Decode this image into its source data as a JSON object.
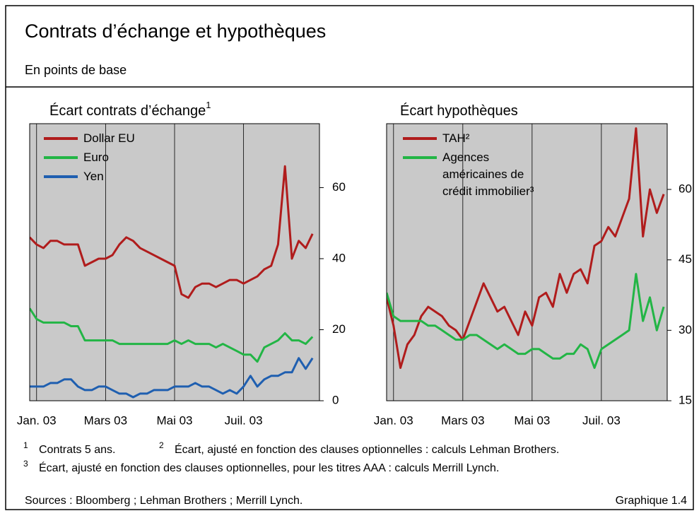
{
  "title": "Contrats d’échange et hypothèques",
  "subtitle": "En points de base",
  "chart_data": [
    {
      "type": "line",
      "title": "Écart contrats d’échange",
      "title_sup": "1",
      "x": [
        -0.2,
        0,
        0.2,
        0.4,
        0.6,
        0.8,
        1,
        1.2,
        1.4,
        1.6,
        1.8,
        2,
        2.2,
        2.4,
        2.6,
        2.8,
        3,
        3.2,
        3.4,
        3.6,
        3.8,
        4,
        4.2,
        4.4,
        4.6,
        4.8,
        5,
        5.2,
        5.4,
        5.6,
        5.8,
        6,
        6.2,
        6.4,
        6.6,
        6.8,
        7,
        7.2,
        7.4,
        7.6,
        7.8,
        8
      ],
      "xlim": [
        -0.2,
        8.2
      ],
      "xticks": [
        {
          "value": 0,
          "label": "Jan. 03"
        },
        {
          "value": 2,
          "label": "Mars 03"
        },
        {
          "value": 4,
          "label": "Mai 03"
        },
        {
          "value": 6,
          "label": "Juil. 03"
        }
      ],
      "ylim": [
        0,
        78
      ],
      "yticks": [
        0,
        20,
        40,
        60
      ],
      "grid": "x",
      "series": [
        {
          "name": "Dollar EU",
          "color": "#b01c1c",
          "values": [
            46,
            44,
            43,
            45,
            45,
            44,
            44,
            44,
            38,
            39,
            40,
            40,
            41,
            44,
            46,
            45,
            43,
            42,
            41,
            40,
            39,
            38,
            30,
            29,
            32,
            33,
            33,
            32,
            33,
            34,
            34,
            33,
            34,
            35,
            37,
            38,
            44,
            66,
            40,
            45,
            43,
            47
          ]
        },
        {
          "name": "Euro",
          "color": "#22b545",
          "values": [
            26,
            23,
            22,
            22,
            22,
            22,
            21,
            21,
            17,
            17,
            17,
            17,
            17,
            16,
            16,
            16,
            16,
            16,
            16,
            16,
            16,
            17,
            16,
            17,
            16,
            16,
            16,
            15,
            16,
            15,
            14,
            13,
            13,
            11,
            15,
            16,
            17,
            19,
            17,
            17,
            16,
            18
          ]
        },
        {
          "name": "Yen",
          "color": "#1f5fb0",
          "values": [
            4,
            4,
            4,
            5,
            5,
            6,
            6,
            4,
            3,
            3,
            4,
            4,
            3,
            2,
            2,
            1,
            2,
            2,
            3,
            3,
            3,
            4,
            4,
            4,
            5,
            4,
            4,
            3,
            2,
            3,
            2,
            4,
            7,
            4,
            6,
            7,
            7,
            8,
            8,
            12,
            9,
            12
          ]
        }
      ]
    },
    {
      "type": "line",
      "title": "Écart hypothèques",
      "x": [
        -0.2,
        0,
        0.2,
        0.4,
        0.6,
        0.8,
        1,
        1.2,
        1.4,
        1.6,
        1.8,
        2,
        2.2,
        2.4,
        2.6,
        2.8,
        3,
        3.2,
        3.4,
        3.6,
        3.8,
        4,
        4.2,
        4.4,
        4.6,
        4.8,
        5,
        5.2,
        5.4,
        5.6,
        5.8,
        6,
        6.2,
        6.4,
        6.6,
        6.8,
        7,
        7.2,
        7.4,
        7.6,
        7.8
      ],
      "xlim": [
        -0.2,
        7.9
      ],
      "xticks": [
        {
          "value": 0,
          "label": "Jan. 03"
        },
        {
          "value": 2,
          "label": "Mars 03"
        },
        {
          "value": 4,
          "label": "Mai 03"
        },
        {
          "value": 6,
          "label": "Juil. 03"
        }
      ],
      "ylim": [
        15,
        74
      ],
      "yticks": [
        15,
        30,
        45,
        60
      ],
      "grid": "x",
      "series": [
        {
          "name": "TAH²",
          "color": "#b01c1c",
          "values": [
            37,
            31,
            22,
            27,
            29,
            33,
            35,
            34,
            33,
            31,
            30,
            28,
            32,
            36,
            40,
            37,
            34,
            35,
            32,
            29,
            34,
            31,
            37,
            38,
            35,
            42,
            38,
            42,
            43,
            40,
            48,
            49,
            52,
            50,
            54,
            58,
            73,
            50,
            60,
            55,
            59
          ]
        },
        {
          "name": "Agences américaines de crédit immobilier³",
          "color": "#22b545",
          "values": [
            38,
            33,
            32,
            32,
            32,
            32,
            31,
            31,
            30,
            29,
            28,
            28,
            29,
            29,
            28,
            27,
            26,
            27,
            26,
            25,
            25,
            26,
            26,
            25,
            24,
            24,
            25,
            25,
            27,
            26,
            22,
            26,
            27,
            28,
            29,
            30,
            42,
            32,
            37,
            30,
            35
          ]
        }
      ]
    }
  ],
  "footnotes": [
    {
      "mark": "1",
      "text": "Contrats 5 ans."
    },
    {
      "mark": "2",
      "text": "Écart, ajusté en fonction des clauses optionnelles : calculs Lehman Brothers."
    },
    {
      "mark": "3",
      "text": "Écart, ajusté en fonction des clauses optionnelles, pour les titres AAA : calculs Merrill Lynch."
    }
  ],
  "sources": "Sources : Bloomberg ; Lehman Brothers ; Merrill Lynch.",
  "figure_label": "Graphique 1.4"
}
